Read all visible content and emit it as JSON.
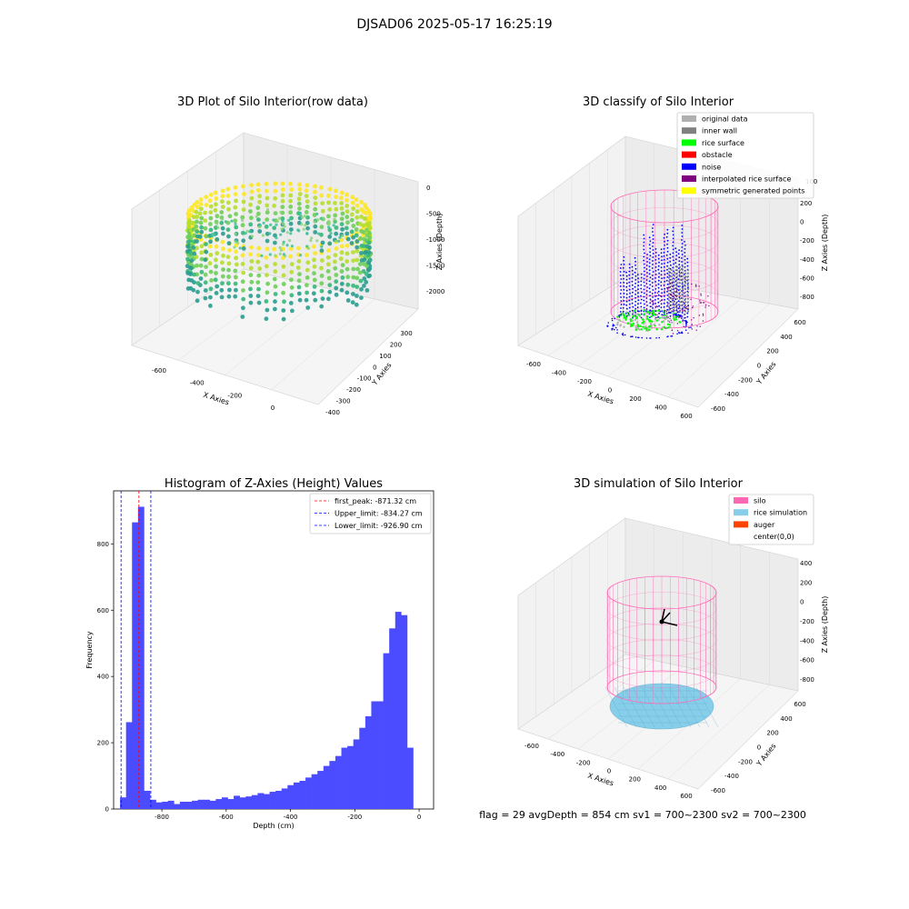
{
  "figure": {
    "suptitle": "DJSAD06 2025-05-17 16:25:19",
    "status_line": "flag = 29  avgDepth = 854 cm  sv1 = 700~2300  sv2 = 700~2300"
  },
  "chart_data": [
    {
      "id": "raw",
      "type": "scatter3d",
      "title": "3D Plot of Silo Interior(row data)",
      "xlabel": "X Axies",
      "ylabel": "Y Axies",
      "zlabel": "Z Axies (Depth)",
      "x_ticks": [
        "-600",
        "-400",
        "-200",
        "0"
      ],
      "y_ticks": [
        "-400",
        "-300",
        "-200",
        "-100",
        "0",
        "100",
        "200",
        "300"
      ],
      "z_ticks": [
        "0",
        "-500",
        "-1000",
        "-1500",
        "-2000"
      ],
      "xlim": [
        -700,
        100
      ],
      "ylim": [
        -420,
        380
      ],
      "zlim": [
        -2300,
        0
      ],
      "colors": [
        "#35b779",
        "#2a9d8f",
        "#6ece58",
        "#b5de2b",
        "#fde725"
      ]
    },
    {
      "id": "classify",
      "type": "scatter3d",
      "title": "3D classify of Silo Interior",
      "xlabel": "X Axies",
      "ylabel": "Y Axies",
      "zlabel": "Z Axies (Depth)",
      "x_ticks": [
        "-600",
        "-400",
        "-200",
        "0",
        "200",
        "400",
        "600"
      ],
      "y_ticks": [
        "-600",
        "-400",
        "-200",
        "0",
        "200",
        "400",
        "600"
      ],
      "z_ticks": [
        "200",
        "0",
        "-200",
        "-400",
        "-600",
        "-800"
      ],
      "z_top_partial_tick": "100",
      "legend_position": "top-right",
      "legend": [
        {
          "label": "original data",
          "color": "#b0b0b0"
        },
        {
          "label": "inner wall",
          "color": "#808080"
        },
        {
          "label": "rice surface",
          "color": "#00ff00"
        },
        {
          "label": "obstacle",
          "color": "#ff0000"
        },
        {
          "label": "noise",
          "color": "#0000ff"
        },
        {
          "label": "interpolated rice surface",
          "color": "#800080"
        },
        {
          "label": "symmetric generated points",
          "color": "#ffff00"
        }
      ]
    },
    {
      "id": "histogram",
      "type": "bar",
      "title": "Histogram of Z-Axies (Height) Values",
      "xlabel": "Depth (cm)",
      "ylabel": "Frequency",
      "xlim": [
        -950,
        45
      ],
      "ylim": [
        0,
        960
      ],
      "x_ticks": [
        -800,
        -600,
        -400,
        -200,
        0
      ],
      "y_ticks": [
        0,
        200,
        400,
        600,
        800
      ],
      "bar_color": "#4b4bff",
      "bin_start": -930,
      "bin_width": 18.6,
      "values": [
        35,
        262,
        865,
        912,
        55,
        28,
        20,
        22,
        25,
        15,
        22,
        22,
        25,
        28,
        28,
        25,
        30,
        35,
        30,
        40,
        35,
        38,
        42,
        48,
        45,
        52,
        55,
        62,
        72,
        80,
        85,
        95,
        105,
        115,
        130,
        145,
        160,
        185,
        190,
        210,
        245,
        280,
        325,
        325,
        470,
        545,
        595,
        585,
        185
      ],
      "vlines": [
        {
          "label": "first_peak: -871.32 cm",
          "x": -871.32,
          "color": "#ff0000"
        },
        {
          "label": "Upper_limit: -834.27 cm",
          "x": -834.27,
          "color": "#0000ff"
        },
        {
          "label": "Lower_limit: -926.90 cm",
          "x": -926.9,
          "color": "#0000ff"
        }
      ],
      "legend_position": "top-right"
    },
    {
      "id": "simulation",
      "type": "surface3d",
      "title": "3D simulation of Silo Interior",
      "xlabel": "X Axies",
      "ylabel": "Y Axies",
      "zlabel": "Z Axies (Depth)",
      "x_ticks": [
        "-600",
        "-400",
        "-200",
        "0",
        "200",
        "400",
        "600"
      ],
      "y_ticks": [
        "-600",
        "-400",
        "-200",
        "0",
        "200",
        "400",
        "600"
      ],
      "z_ticks": [
        "400",
        "200",
        "0",
        "-200",
        "-400",
        "-600",
        "-800"
      ],
      "legend_position": "top-right",
      "legend": [
        {
          "label": "silo",
          "color": "#ff69b4"
        },
        {
          "label": "rice simulation",
          "color": "#87ceeb"
        },
        {
          "label": "auger",
          "color": "#ff4500"
        },
        {
          "label": "center(0,0)",
          "color": ""
        }
      ]
    }
  ]
}
